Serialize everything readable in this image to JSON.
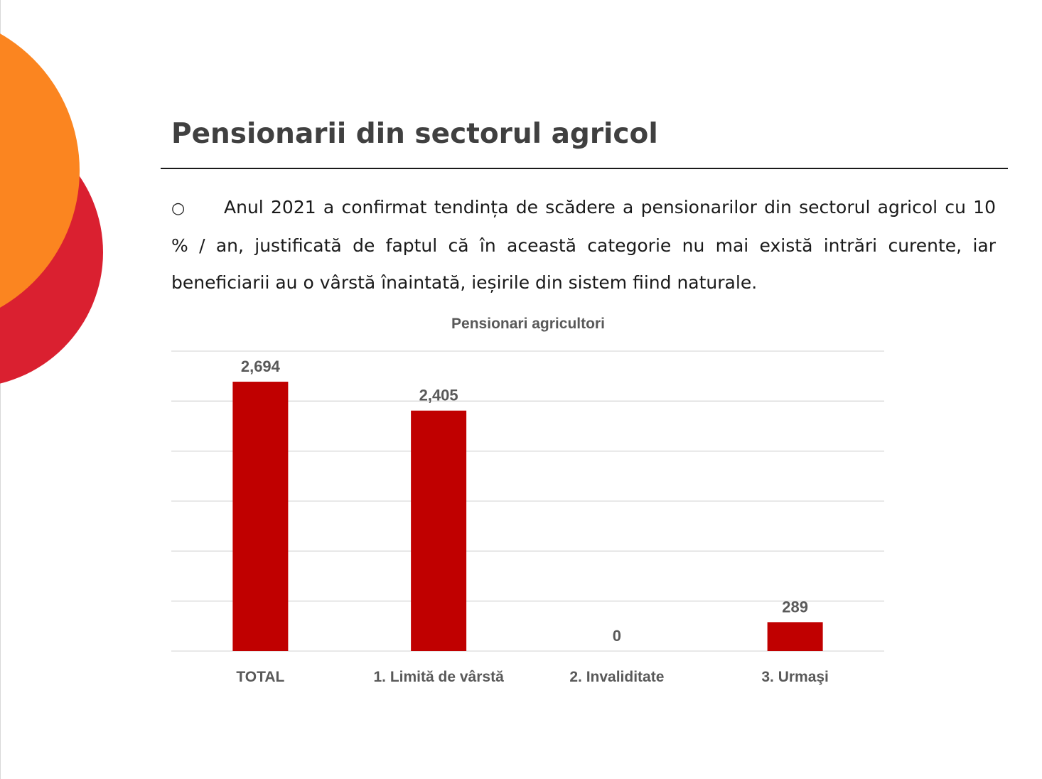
{
  "slide": {
    "title": "Pensionarii din sectorul agricol",
    "bullet_symbol": "○",
    "paragraph": "Anul 2021 a confirmat tendința de scădere a pensionarilor din sectorul agricol cu 10 % / an, justificată de faptul că în această categorie nu mai există intrări curente, iar beneficiarii au o vârstă înaintată, ieșirile din sistem fiind naturale."
  },
  "colors": {
    "bar": "#c00000",
    "decor_orange": "#fb8520",
    "decor_red": "#da2030",
    "gridline": "#d9d9d9",
    "title_text": "#404040",
    "chart_text": "#595959"
  },
  "chart_data": {
    "type": "bar",
    "title": "Pensionari agricultori",
    "categories": [
      "TOTAL",
      "1. Limită de vârstă",
      "2. Invaliditate",
      "3. Urmaşi"
    ],
    "values": [
      2694,
      2405,
      0,
      289
    ],
    "value_labels": [
      "2,694",
      "2,405",
      "0",
      "289"
    ],
    "xlabel": "",
    "ylabel": "",
    "ylim": [
      0,
      3000
    ],
    "grid": true,
    "legend": "none",
    "y_axis_labels_visible": false
  }
}
